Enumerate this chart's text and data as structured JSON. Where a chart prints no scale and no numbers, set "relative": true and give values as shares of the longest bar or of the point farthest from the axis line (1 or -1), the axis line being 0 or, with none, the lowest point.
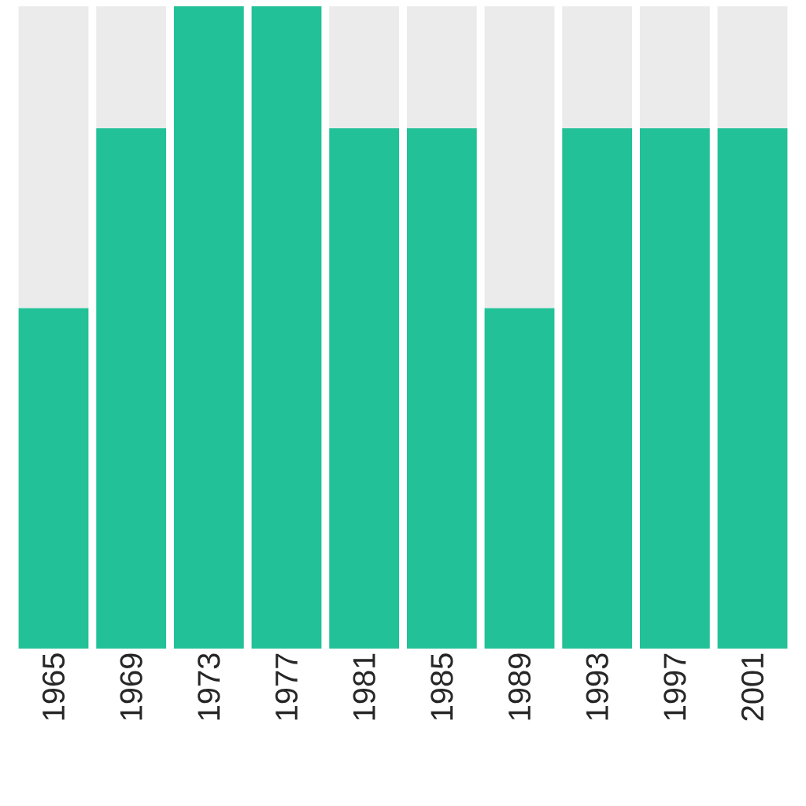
{
  "chart_data": {
    "type": "bar",
    "relative": true,
    "stacked": true,
    "categories": [
      "1965",
      "1969",
      "1973",
      "1977",
      "1981",
      "1985",
      "1989",
      "1993",
      "1997",
      "2001"
    ],
    "series": [
      {
        "color": "#22c197",
        "values": [
          0.53,
          0.81,
          1,
          1,
          0.81,
          0.81,
          0.53,
          0.81,
          0.81,
          0.81
        ]
      },
      {
        "color": "#ebebeb",
        "values": [
          0.47,
          0.19,
          0,
          0,
          0.19,
          0.19,
          0.47,
          0.19,
          0.19,
          0.19
        ]
      }
    ]
  }
}
